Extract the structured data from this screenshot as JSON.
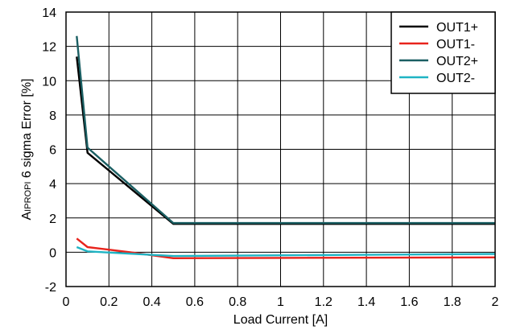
{
  "chart_data": {
    "type": "line",
    "title": "",
    "xlabel": "Load Current [A]",
    "ylabel": {
      "prefix": "A",
      "subscript": "IPROPI",
      "rest": " 6 sigma Error [%]"
    },
    "xlim": [
      0,
      2
    ],
    "ylim": [
      -2,
      14
    ],
    "xticks": [
      0,
      0.2,
      0.4,
      0.6,
      0.8,
      1,
      1.2,
      1.4,
      1.6,
      1.8,
      2
    ],
    "xtick_labels": [
      "0",
      "0.2",
      "0.4",
      "0.6",
      "0.8",
      "1",
      "1.2",
      "1.4",
      "1.6",
      "1.8",
      "2"
    ],
    "yticks": [
      -2,
      0,
      2,
      4,
      6,
      8,
      10,
      12,
      14
    ],
    "ytick_labels": [
      "-2",
      "0",
      "2",
      "4",
      "6",
      "8",
      "10",
      "12",
      "14"
    ],
    "grid": true,
    "legend_position": "top-right",
    "series": [
      {
        "name": "OUT1+",
        "color": "#000000",
        "x": [
          0.05,
          0.1,
          0.5,
          1.0,
          2.0
        ],
        "y": [
          11.4,
          5.8,
          1.65,
          1.65,
          1.65
        ]
      },
      {
        "name": "OUT1-",
        "color": "#e8231c",
        "x": [
          0.05,
          0.1,
          0.2,
          0.3,
          0.5,
          1.0,
          2.0
        ],
        "y": [
          0.8,
          0.3,
          0.15,
          0.0,
          -0.35,
          -0.33,
          -0.3
        ]
      },
      {
        "name": "OUT2+",
        "color": "#1b5f63",
        "x": [
          0.05,
          0.1,
          0.5,
          1.0,
          2.0
        ],
        "y": [
          12.6,
          6.1,
          1.7,
          1.7,
          1.7
        ]
      },
      {
        "name": "OUT2-",
        "color": "#1fb4c4",
        "x": [
          0.05,
          0.1,
          0.5,
          1.0,
          2.0
        ],
        "y": [
          0.3,
          0.05,
          -0.22,
          -0.18,
          -0.1
        ]
      }
    ]
  }
}
